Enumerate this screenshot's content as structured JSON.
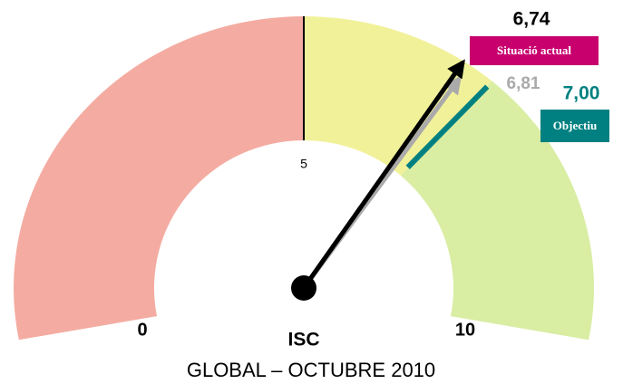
{
  "chart_data": {
    "type": "gauge",
    "title": "ISC",
    "subtitle": "GLOBAL – OCTUBRE 2010",
    "range": [
      0,
      10
    ],
    "ticks": [
      0,
      5,
      10
    ],
    "bands": [
      {
        "from": 0,
        "to": 5,
        "color": "#f4aca2"
      },
      {
        "from": 5,
        "to": 7,
        "color": "#f1f19a"
      },
      {
        "from": 7,
        "to": 10,
        "color": "#d9eda3"
      }
    ],
    "series": [
      {
        "name": "Situació actual",
        "values": [
          6.74
        ],
        "value_labels": [
          "6,74"
        ],
        "color": "#000000",
        "label_color": "#c8006e"
      },
      {
        "values": [
          6.81
        ],
        "value_labels": [
          "6,81"
        ],
        "color": "#aaaaaa"
      }
    ],
    "target": {
      "name": "Objectiu",
      "value": 7,
      "label": "7,00",
      "color": "#008080"
    }
  }
}
